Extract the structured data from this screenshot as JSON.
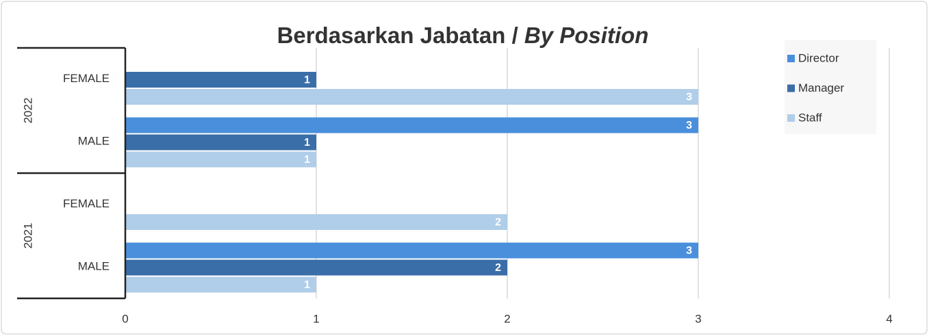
{
  "chart_data": {
    "type": "bar",
    "orientation": "horizontal",
    "title": "Berdasarkan Jabatan /",
    "title_italic": "By Position",
    "groups": [
      "2022",
      "2021"
    ],
    "categories": [
      "FEMALE",
      "MALE",
      "FEMALE",
      "MALE"
    ],
    "series": [
      {
        "name": "Director",
        "color": "#4a8fdc",
        "values": [
          null,
          3,
          null,
          3
        ]
      },
      {
        "name": "Manager",
        "color": "#3a6ea8",
        "values": [
          1,
          1,
          null,
          2
        ]
      },
      {
        "name": "Staff",
        "color": "#b0cde9",
        "values": [
          3,
          1,
          2,
          1
        ]
      }
    ],
    "xlim": [
      0,
      4
    ],
    "xticks": [
      0,
      1,
      2,
      3,
      4
    ],
    "grid": true,
    "legend": "right"
  }
}
